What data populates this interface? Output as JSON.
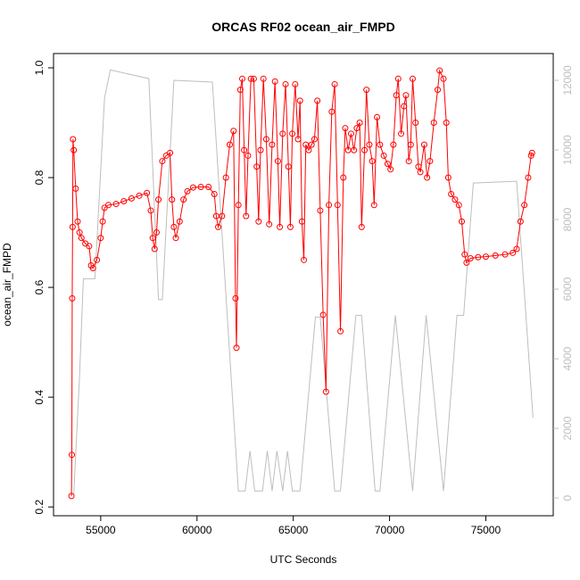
{
  "chart_data": {
    "type": "line",
    "title": "ORCAS RF02 ocean_air_FMPD",
    "xlabel": "UTC Seconds",
    "ylabel": "ocean_air_FMPD",
    "xlim": [
      52550,
      78500
    ],
    "xticks": [
      55000,
      60000,
      65000,
      70000,
      75000
    ],
    "ylim": [
      0.184,
      1.026
    ],
    "yticks": [
      0.2,
      0.4,
      0.6,
      0.8,
      {
        "value": 1,
        "label": "1.0"
      }
    ],
    "y2lim": [
      -510,
      12770
    ],
    "y2ticks": [
      0,
      2000,
      4000,
      6000,
      8000,
      10000,
      12000
    ],
    "series": [
      {
        "color": "#bebebe",
        "axis": "y2",
        "x": [
          53600,
          53900,
          54100,
          54700,
          55200,
          55500,
          57500,
          58000,
          58200,
          58800,
          60800,
          62150,
          62500,
          62750,
          63000,
          63400,
          63650,
          63900,
          64150,
          64450,
          64700,
          64950,
          65350,
          66150,
          66400,
          67150,
          67450,
          68250,
          68550,
          69250,
          69500,
          70300,
          71200,
          71900,
          72800,
          73500,
          73850,
          74350,
          76600,
          77450
        ],
        "values": [
          100,
          3500,
          6300,
          6300,
          11500,
          12300,
          12050,
          5700,
          5700,
          12000,
          11950,
          200,
          200,
          1350,
          200,
          200,
          1350,
          200,
          1350,
          200,
          1350,
          200,
          200,
          5200,
          5200,
          200,
          200,
          5250,
          5250,
          200,
          200,
          5250,
          200,
          5250,
          200,
          5250,
          5250,
          9050,
          9100,
          2300
        ]
      },
      {
        "color": "#ff0000",
        "x": [
          53480,
          53500,
          53520,
          53540,
          53560,
          53600,
          53700,
          53800,
          53900,
          54000,
          54200,
          54400,
          54500,
          54600,
          54800,
          55000,
          55100,
          55200,
          55400,
          55800,
          56200,
          56600,
          57000,
          57400,
          57600,
          57700,
          57800,
          57900,
          58000,
          58200,
          58400,
          58600,
          58700,
          58800,
          58900,
          59100,
          59300,
          59500,
          59800,
          60200,
          60600,
          60900,
          61000,
          61100,
          61300,
          61500,
          61700,
          61900,
          62000,
          62050,
          62150,
          62250,
          62350,
          62450,
          62550,
          62650,
          62800,
          62950,
          63100,
          63200,
          63300,
          63450,
          63600,
          63750,
          63900,
          64050,
          64200,
          64300,
          64450,
          64600,
          64750,
          64850,
          64950,
          65100,
          65250,
          65350,
          65450,
          65550,
          65650,
          65800,
          65950,
          66100,
          66250,
          66400,
          66550,
          66700,
          66850,
          67000,
          67150,
          67300,
          67450,
          67600,
          67700,
          67850,
          68000,
          68150,
          68300,
          68450,
          68550,
          68700,
          68800,
          68950,
          69100,
          69200,
          69350,
          69500,
          69700,
          69900,
          70050,
          70200,
          70350,
          70450,
          70600,
          70750,
          70850,
          71000,
          71100,
          71200,
          71350,
          71500,
          71600,
          71800,
          71950,
          72100,
          72300,
          72500,
          72600,
          72800,
          72950,
          73050,
          73200,
          73400,
          73600,
          73750,
          73900,
          74000,
          74200,
          74600,
          75000,
          75500,
          76000,
          76400,
          76600,
          76800,
          77000,
          77200,
          77350,
          77400
        ],
        "values": [
          0.22,
          0.295,
          0.58,
          0.71,
          0.87,
          0.85,
          0.78,
          0.72,
          0.7,
          0.69,
          0.68,
          0.675,
          0.64,
          0.635,
          0.65,
          0.69,
          0.72,
          0.745,
          0.75,
          0.752,
          0.757,
          0.762,
          0.767,
          0.772,
          0.74,
          0.69,
          0.67,
          0.7,
          0.76,
          0.83,
          0.84,
          0.845,
          0.76,
          0.71,
          0.69,
          0.72,
          0.76,
          0.775,
          0.782,
          0.783,
          0.783,
          0.77,
          0.73,
          0.71,
          0.73,
          0.8,
          0.86,
          0.885,
          0.58,
          0.49,
          0.75,
          0.96,
          0.98,
          0.85,
          0.73,
          0.84,
          0.98,
          0.98,
          0.82,
          0.72,
          0.85,
          0.98,
          0.87,
          0.715,
          0.86,
          0.975,
          0.83,
          0.71,
          0.88,
          0.97,
          0.82,
          0.71,
          0.88,
          0.97,
          0.87,
          0.94,
          0.72,
          0.65,
          0.86,
          0.85,
          0.86,
          0.87,
          0.94,
          0.74,
          0.55,
          0.41,
          0.75,
          0.92,
          0.97,
          0.75,
          0.52,
          0.8,
          0.89,
          0.85,
          0.88,
          0.85,
          0.89,
          0.9,
          0.71,
          0.85,
          0.96,
          0.86,
          0.83,
          0.75,
          0.91,
          0.86,
          0.84,
          0.825,
          0.815,
          0.86,
          0.95,
          0.98,
          0.88,
          0.93,
          0.95,
          0.83,
          0.86,
          0.98,
          0.9,
          0.82,
          0.81,
          0.86,
          0.8,
          0.83,
          0.9,
          0.96,
          0.995,
          0.98,
          0.9,
          0.8,
          0.77,
          0.76,
          0.75,
          0.72,
          0.66,
          0.645,
          0.653,
          0.655,
          0.656,
          0.658,
          0.66,
          0.663,
          0.67,
          0.72,
          0.75,
          0.8,
          0.84,
          0.845
        ]
      }
    ]
  }
}
